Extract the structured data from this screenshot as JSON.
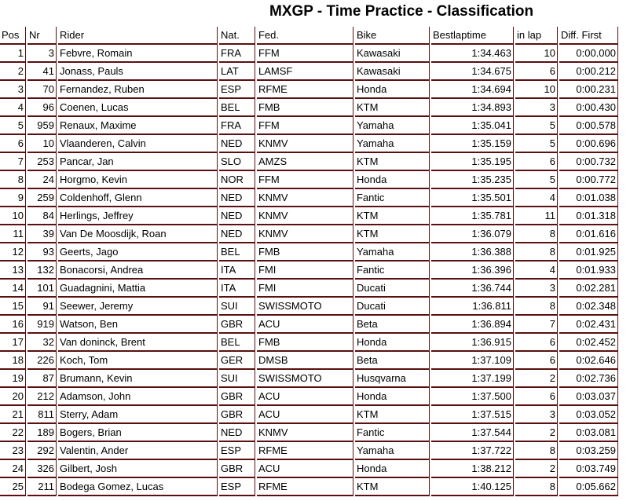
{
  "title": "MXGP - Time Practice - Classification",
  "columns": [
    "Pos",
    "Nr",
    "Rider",
    "Nat.",
    "Fed.",
    "Bike",
    "Bestlaptime",
    "in lap",
    "Diff. First"
  ],
  "rows": [
    [
      "1",
      "3",
      "Febvre, Romain",
      "FRA",
      "FFM",
      "Kawasaki",
      "1:34.463",
      "10",
      "0:00.000"
    ],
    [
      "2",
      "41",
      "Jonass, Pauls",
      "LAT",
      "LAMSF",
      "Kawasaki",
      "1:34.675",
      "6",
      "0:00.212"
    ],
    [
      "3",
      "70",
      "Fernandez, Ruben",
      "ESP",
      "RFME",
      "Honda",
      "1:34.694",
      "10",
      "0:00.231"
    ],
    [
      "4",
      "96",
      "Coenen, Lucas",
      "BEL",
      "FMB",
      "KTM",
      "1:34.893",
      "3",
      "0:00.430"
    ],
    [
      "5",
      "959",
      "Renaux, Maxime",
      "FRA",
      "FFM",
      "Yamaha",
      "1:35.041",
      "5",
      "0:00.578"
    ],
    [
      "6",
      "10",
      "Vlaanderen, Calvin",
      "NED",
      "KNMV",
      "Yamaha",
      "1:35.159",
      "5",
      "0:00.696"
    ],
    [
      "7",
      "253",
      "Pancar, Jan",
      "SLO",
      "AMZS",
      "KTM",
      "1:35.195",
      "6",
      "0:00.732"
    ],
    [
      "8",
      "24",
      "Horgmo, Kevin",
      "NOR",
      "FFM",
      "Honda",
      "1:35.235",
      "5",
      "0:00.772"
    ],
    [
      "9",
      "259",
      "Coldenhoff, Glenn",
      "NED",
      "KNMV",
      "Fantic",
      "1:35.501",
      "4",
      "0:01.038"
    ],
    [
      "10",
      "84",
      "Herlings, Jeffrey",
      "NED",
      "KNMV",
      "KTM",
      "1:35.781",
      "11",
      "0:01.318"
    ],
    [
      "11",
      "39",
      "Van De Moosdijk, Roan",
      "NED",
      "KNMV",
      "KTM",
      "1:36.079",
      "8",
      "0:01.616"
    ],
    [
      "12",
      "93",
      "Geerts, Jago",
      "BEL",
      "FMB",
      "Yamaha",
      "1:36.388",
      "8",
      "0:01.925"
    ],
    [
      "13",
      "132",
      "Bonacorsi, Andrea",
      "ITA",
      "FMI",
      "Fantic",
      "1:36.396",
      "4",
      "0:01.933"
    ],
    [
      "14",
      "101",
      "Guadagnini, Mattia",
      "ITA",
      "FMI",
      "Ducati",
      "1:36.744",
      "3",
      "0:02.281"
    ],
    [
      "15",
      "91",
      "Seewer, Jeremy",
      "SUI",
      "SWISSMOTO",
      "Ducati",
      "1:36.811",
      "8",
      "0:02.348"
    ],
    [
      "16",
      "919",
      "Watson, Ben",
      "GBR",
      "ACU",
      "Beta",
      "1:36.894",
      "7",
      "0:02.431"
    ],
    [
      "17",
      "32",
      "Van doninck, Brent",
      "BEL",
      "FMB",
      "Honda",
      "1:36.915",
      "6",
      "0:02.452"
    ],
    [
      "18",
      "226",
      "Koch, Tom",
      "GER",
      "DMSB",
      "Beta",
      "1:37.109",
      "6",
      "0:02.646"
    ],
    [
      "19",
      "87",
      "Brumann, Kevin",
      "SUI",
      "SWISSMOTO",
      "Husqvarna",
      "1:37.199",
      "2",
      "0:02.736"
    ],
    [
      "20",
      "212",
      "Adamson, John",
      "GBR",
      "ACU",
      "Honda",
      "1:37.500",
      "6",
      "0:03.037"
    ],
    [
      "21",
      "811",
      "Sterry, Adam",
      "GBR",
      "ACU",
      "KTM",
      "1:37.515",
      "3",
      "0:03.052"
    ],
    [
      "22",
      "189",
      "Bogers, Brian",
      "NED",
      "KNMV",
      "Fantic",
      "1:37.544",
      "2",
      "0:03.081"
    ],
    [
      "23",
      "292",
      "Valentin, Ander",
      "ESP",
      "RFME",
      "Yamaha",
      "1:37.722",
      "8",
      "0:03.259"
    ],
    [
      "24",
      "326",
      "Gilbert, Josh",
      "GBR",
      "ACU",
      "Honda",
      "1:38.212",
      "2",
      "0:03.749"
    ],
    [
      "25",
      "211",
      "Bodega Gomez, Lucas",
      "ESP",
      "RFME",
      "KTM",
      "1:40.125",
      "8",
      "0:05.662"
    ]
  ],
  "border_color": "#5a1010"
}
